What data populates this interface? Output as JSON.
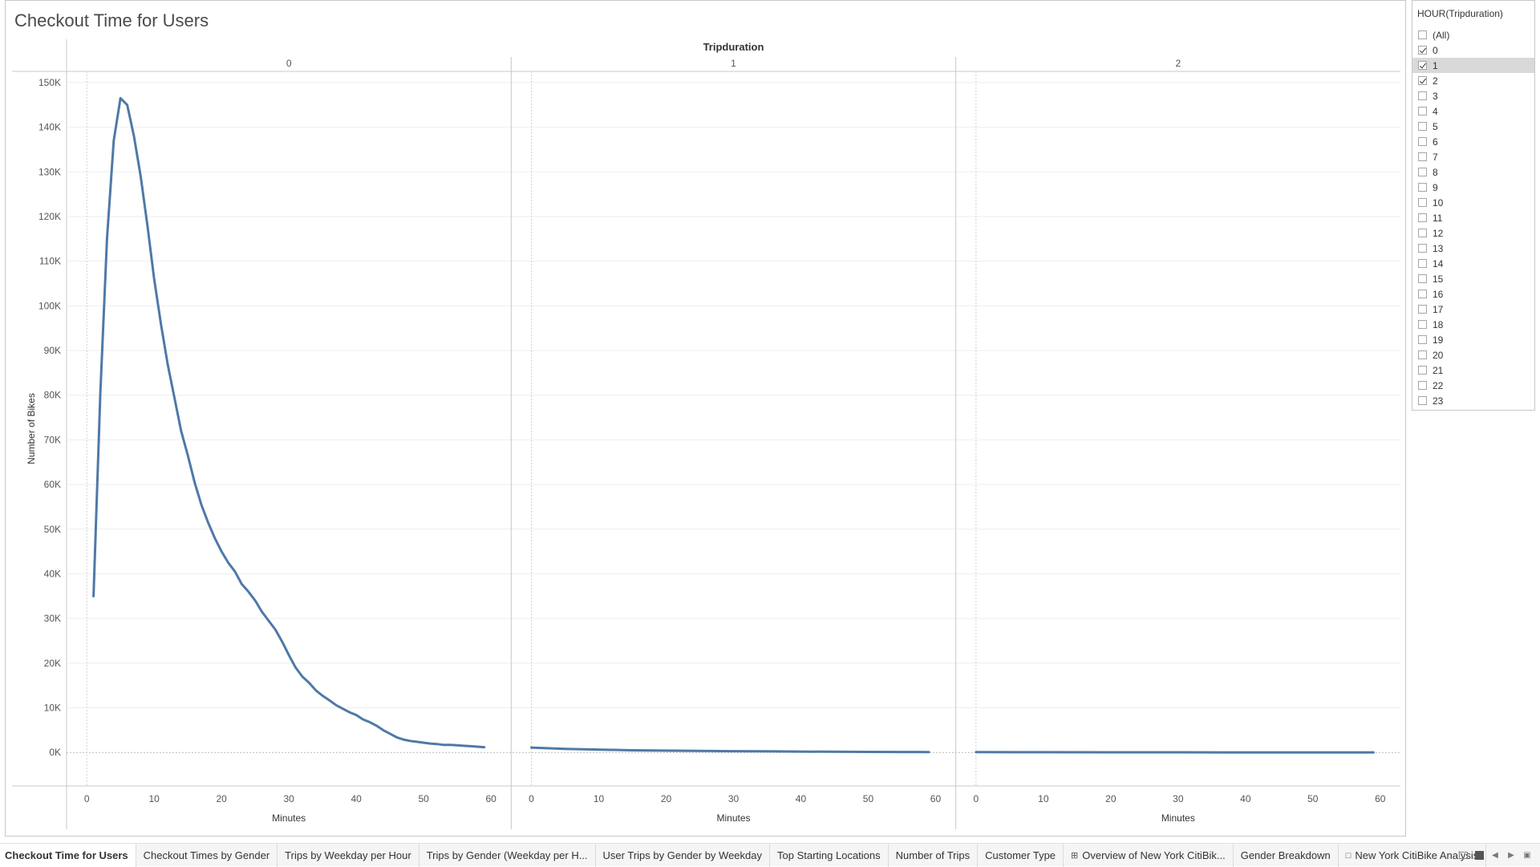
{
  "sheet": {
    "title": "Checkout Time for Users"
  },
  "colors": {
    "line": "#4e79a7",
    "grid": "#eeeeee",
    "divider": "#c8c8c8",
    "zero": "#b8b8b8"
  },
  "filter": {
    "title": "HOUR(Tripduration)",
    "highlighted": "1",
    "items": [
      {
        "label": "(All)",
        "checked": false
      },
      {
        "label": "0",
        "checked": true
      },
      {
        "label": "1",
        "checked": true
      },
      {
        "label": "2",
        "checked": true
      },
      {
        "label": "3",
        "checked": false
      },
      {
        "label": "4",
        "checked": false
      },
      {
        "label": "5",
        "checked": false
      },
      {
        "label": "6",
        "checked": false
      },
      {
        "label": "7",
        "checked": false
      },
      {
        "label": "8",
        "checked": false
      },
      {
        "label": "9",
        "checked": false
      },
      {
        "label": "10",
        "checked": false
      },
      {
        "label": "11",
        "checked": false
      },
      {
        "label": "12",
        "checked": false
      },
      {
        "label": "13",
        "checked": false
      },
      {
        "label": "14",
        "checked": false
      },
      {
        "label": "15",
        "checked": false
      },
      {
        "label": "16",
        "checked": false
      },
      {
        "label": "17",
        "checked": false
      },
      {
        "label": "18",
        "checked": false
      },
      {
        "label": "19",
        "checked": false
      },
      {
        "label": "20",
        "checked": false
      },
      {
        "label": "21",
        "checked": false
      },
      {
        "label": "22",
        "checked": false
      },
      {
        "label": "23",
        "checked": false
      }
    ]
  },
  "tabs": [
    {
      "label": "Checkout Time for Users",
      "active": true,
      "icon": ""
    },
    {
      "label": "Checkout Times by Gender",
      "active": false,
      "icon": ""
    },
    {
      "label": "Trips by Weekday per Hour",
      "active": false,
      "icon": ""
    },
    {
      "label": "Trips by Gender (Weekday per H...",
      "active": false,
      "icon": ""
    },
    {
      "label": "User Trips by Gender by Weekday",
      "active": false,
      "icon": ""
    },
    {
      "label": "Top Starting Locations",
      "active": false,
      "icon": ""
    },
    {
      "label": "Number of Trips",
      "active": false,
      "icon": ""
    },
    {
      "label": "Customer Type",
      "active": false,
      "icon": ""
    },
    {
      "label": "Overview of New York CitiBik...",
      "active": false,
      "icon": "dashboard-icon"
    },
    {
      "label": "Gender Breakdown",
      "active": false,
      "icon": ""
    },
    {
      "label": "New York CitiBike Analysis",
      "active": false,
      "icon": "story-icon"
    }
  ],
  "chart_data": {
    "type": "line",
    "column_header": "Tripduration",
    "ylabel": "Number of Bikes",
    "xlabel": "Minutes",
    "ylim": [
      -7500,
      152500
    ],
    "xlim": [
      -3,
      63
    ],
    "yticks": [
      0,
      10000,
      20000,
      30000,
      40000,
      50000,
      60000,
      70000,
      80000,
      90000,
      100000,
      110000,
      120000,
      130000,
      140000,
      150000
    ],
    "ytick_labels": [
      "0K",
      "10K",
      "20K",
      "30K",
      "40K",
      "50K",
      "60K",
      "70K",
      "80K",
      "90K",
      "100K",
      "110K",
      "120K",
      "130K",
      "140K",
      "150K"
    ],
    "xticks": [
      0,
      10,
      20,
      30,
      40,
      50,
      60
    ],
    "grid": true,
    "panels": [
      {
        "name": "0",
        "x": [
          1,
          2,
          3,
          4,
          5,
          6,
          7,
          8,
          9,
          10,
          11,
          12,
          13,
          14,
          15,
          16,
          17,
          18,
          19,
          20,
          21,
          22,
          23,
          24,
          25,
          26,
          27,
          28,
          29,
          30,
          31,
          32,
          33,
          34,
          35,
          36,
          37,
          38,
          39,
          40,
          41,
          42,
          43,
          44,
          45,
          46,
          47,
          48,
          49,
          50,
          51,
          52,
          53,
          54,
          55,
          56,
          57,
          58,
          59
        ],
        "y": [
          35000,
          80000,
          115000,
          137000,
          146500,
          145000,
          138000,
          129000,
          118000,
          106000,
          96000,
          87000,
          79500,
          72000,
          66500,
          60500,
          55500,
          51500,
          48000,
          45000,
          42500,
          40500,
          37700,
          36000,
          34000,
          31500,
          29500,
          27500,
          24800,
          21800,
          19000,
          17000,
          15600,
          13900,
          12700,
          11700,
          10600,
          9800,
          9000,
          8400,
          7400,
          6800,
          6000,
          5000,
          4200,
          3400,
          2900,
          2600,
          2400,
          2200,
          2000,
          1900,
          1700,
          1700,
          1600,
          1500,
          1400,
          1300,
          1200
        ]
      },
      {
        "name": "1",
        "x": [
          0,
          5,
          10,
          15,
          20,
          25,
          30,
          35,
          40,
          45,
          50,
          55,
          59
        ],
        "y": [
          1100,
          800,
          650,
          500,
          420,
          350,
          300,
          250,
          200,
          170,
          140,
          110,
          90
        ]
      },
      {
        "name": "2",
        "x": [
          0,
          10,
          20,
          30,
          40,
          50,
          59
        ],
        "y": [
          80,
          60,
          50,
          40,
          30,
          25,
          20
        ]
      }
    ]
  }
}
